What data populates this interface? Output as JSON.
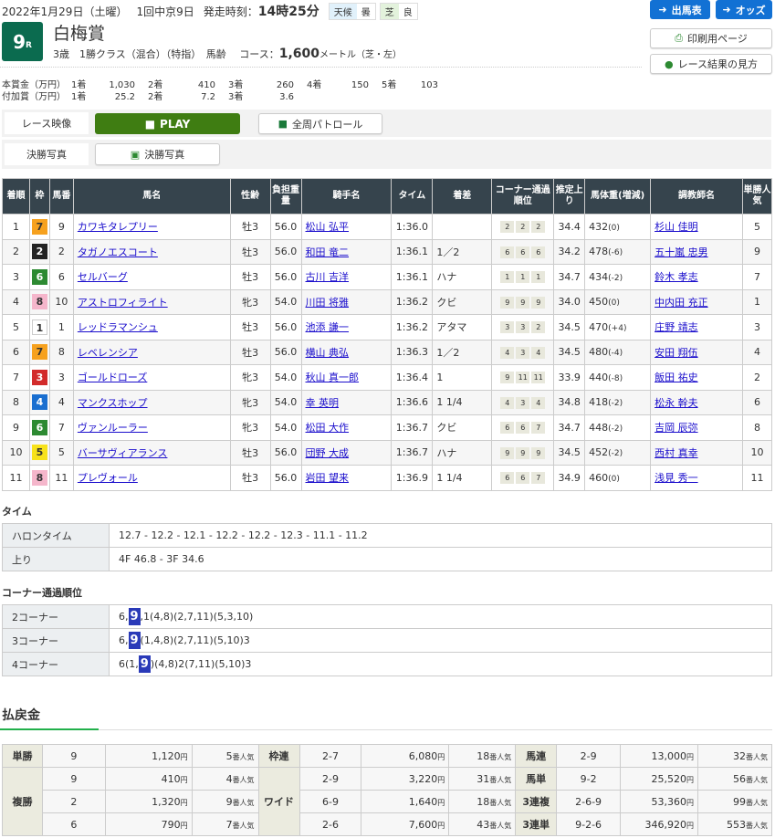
{
  "header": {
    "date": "2022年1月29日（土曜）",
    "meeting": "1回中京9日",
    "post_label": "発走時刻：",
    "post_time": "14時25分",
    "weather_label": "天候",
    "weather": "曇",
    "track_label": "芝",
    "track_cond": "良",
    "race_num": "9",
    "race_suffix": "R",
    "race_name": "白梅賞",
    "conditions": "3歳　1勝クラス（混合）（特指）　馬齢",
    "course_label": "コース：",
    "distance": "1,600",
    "unit": "メートル（芝・左）"
  },
  "prize": {
    "main_label": "本賞金（万円）",
    "main": [
      [
        "1着",
        "1,030"
      ],
      [
        "2着",
        "410"
      ],
      [
        "3着",
        "260"
      ],
      [
        "4着",
        "150"
      ],
      [
        "5着",
        "103"
      ]
    ],
    "add_label": "付加賞（万円）",
    "add": [
      [
        "1着",
        "25.2"
      ],
      [
        "2着",
        "7.2"
      ],
      [
        "3着",
        "3.6"
      ]
    ]
  },
  "buttons": {
    "entry": "出馬表",
    "odds": "オッズ",
    "print": "印刷用ページ",
    "howto": "レース結果の見方"
  },
  "media": {
    "video_label": "レース映像",
    "play": "PLAY",
    "patrol": "全周パトロール",
    "photo_label": "決勝写真",
    "photo": "決勝写真"
  },
  "colors": {
    "waku": {
      "1": "#ffffff",
      "2": "#222222",
      "3": "#d22b2b",
      "4": "#1a6fd0",
      "5": "#f7e21b",
      "6": "#2d8a32",
      "7": "#f6a11e",
      "8": "#f5b6cb"
    },
    "header_bg": "#36444d",
    "play": "#3f7d12",
    "accent": "#1271d4"
  },
  "table": {
    "headers": [
      "着順",
      "枠",
      "馬番",
      "馬名",
      "性齢",
      "負担重量",
      "騎手名",
      "タイム",
      "着差",
      "コーナー通過順位",
      "推定上り",
      "馬体重(増減)",
      "調教師名",
      "単勝人気"
    ],
    "rows": [
      [
        "1",
        "7",
        "9",
        "カワキタレプリー",
        "牡3",
        "56.0",
        "松山 弘平",
        "1:36.0",
        "",
        [
          "2",
          "2",
          "2"
        ],
        "34.4",
        "432",
        "(0)",
        "杉山 佳明",
        "5"
      ],
      [
        "2",
        "2",
        "2",
        "タガノエスコート",
        "牡3",
        "56.0",
        "和田 竜二",
        "1:36.1",
        "1／2",
        [
          "6",
          "6",
          "6"
        ],
        "34.2",
        "478",
        "(-6)",
        "五十嵐 忠男",
        "9"
      ],
      [
        "3",
        "6",
        "6",
        "セルバーグ",
        "牡3",
        "56.0",
        "古川 吉洋",
        "1:36.1",
        "ハナ",
        [
          "1",
          "1",
          "1"
        ],
        "34.7",
        "434",
        "(-2)",
        "鈴木 孝志",
        "7"
      ],
      [
        "4",
        "8",
        "10",
        "アストロフィライト",
        "牝3",
        "54.0",
        "川田 将雅",
        "1:36.2",
        "クビ",
        [
          "9",
          "9",
          "9"
        ],
        "34.0",
        "450",
        "(0)",
        "中内田 充正",
        "1"
      ],
      [
        "5",
        "1",
        "1",
        "レッドラマンシュ",
        "牡3",
        "56.0",
        "池添 謙一",
        "1:36.2",
        "アタマ",
        [
          "3",
          "3",
          "2"
        ],
        "34.5",
        "470",
        "(+4)",
        "庄野 靖志",
        "3"
      ],
      [
        "6",
        "7",
        "8",
        "レベレンシア",
        "牡3",
        "56.0",
        "横山 典弘",
        "1:36.3",
        "1／2",
        [
          "4",
          "3",
          "4"
        ],
        "34.5",
        "480",
        "(-4)",
        "安田 翔伍",
        "4"
      ],
      [
        "7",
        "3",
        "3",
        "ゴールドローズ",
        "牝3",
        "54.0",
        "秋山 真一郎",
        "1:36.4",
        "1",
        [
          "9",
          "11",
          "11"
        ],
        "33.9",
        "440",
        "(-8)",
        "飯田 祐史",
        "2"
      ],
      [
        "8",
        "4",
        "4",
        "マンクスホップ",
        "牝3",
        "54.0",
        "幸 英明",
        "1:36.6",
        "1 1/4",
        [
          "4",
          "3",
          "4"
        ],
        "34.8",
        "418",
        "(-2)",
        "松永 幹夫",
        "6"
      ],
      [
        "9",
        "6",
        "7",
        "ヴァンルーラー",
        "牝3",
        "54.0",
        "松田 大作",
        "1:36.7",
        "クビ",
        [
          "6",
          "6",
          "7"
        ],
        "34.7",
        "448",
        "(-2)",
        "吉岡 辰弥",
        "8"
      ],
      [
        "10",
        "5",
        "5",
        "バーサヴィアランス",
        "牡3",
        "56.0",
        "団野 大成",
        "1:36.7",
        "ハナ",
        [
          "9",
          "9",
          "9"
        ],
        "34.5",
        "452",
        "(-2)",
        "西村 真幸",
        "10"
      ],
      [
        "11",
        "8",
        "11",
        "プレヴォール",
        "牡3",
        "56.0",
        "岩田 望来",
        "1:36.9",
        "1 1/4",
        [
          "6",
          "6",
          "7"
        ],
        "34.9",
        "460",
        "(0)",
        "浅見 秀一",
        "11"
      ]
    ]
  },
  "time": {
    "title": "タイム",
    "rows": [
      {
        "label": "ハロンタイム",
        "value": "12.7 - 12.2 - 12.1 - 12.2 - 12.2 - 12.3 - 11.1 - 11.2"
      },
      {
        "label": "上り",
        "value": "4F 46.8 - 3F 34.6"
      }
    ]
  },
  "corner": {
    "title": "コーナー通過順位",
    "rows": [
      {
        "label": "2コーナー",
        "pre": "6,",
        "hl": "9",
        "post": ",1(4,8)(2,7,11)(5,3,10)"
      },
      {
        "label": "3コーナー",
        "pre": "6,",
        "hl": "9",
        "post": "(1,4,8)(2,7,11)(5,10)3"
      },
      {
        "label": "4コーナー",
        "pre": "6(1,",
        "hl": "9",
        "post": ")(4,8)2(7,11)(5,10)3"
      }
    ]
  },
  "payout": {
    "title": "払戻金",
    "yen": "円",
    "pop_suffix": "番人気",
    "col1": [
      {
        "type": "単勝",
        "items": [
          [
            "9",
            "1,120",
            "5"
          ]
        ]
      },
      {
        "type": "複勝",
        "items": [
          [
            "9",
            "410",
            "4"
          ],
          [
            "2",
            "1,320",
            "9"
          ],
          [
            "6",
            "790",
            "7"
          ]
        ]
      }
    ],
    "col2": [
      {
        "type": "枠連",
        "items": [
          [
            "2-7",
            "6,080",
            "18"
          ]
        ]
      },
      {
        "type": "ワイド",
        "items": [
          [
            "2-9",
            "3,220",
            "31"
          ],
          [
            "6-9",
            "1,640",
            "18"
          ],
          [
            "2-6",
            "7,600",
            "43"
          ]
        ]
      }
    ],
    "col3": [
      {
        "type": "馬連",
        "items": [
          [
            "2-9",
            "13,000",
            "32"
          ]
        ]
      },
      {
        "type": "馬単",
        "items": [
          [
            "9-2",
            "25,520",
            "56"
          ]
        ]
      },
      {
        "type": "3連複",
        "items": [
          [
            "2-6-9",
            "53,360",
            "99"
          ]
        ]
      },
      {
        "type": "3連単",
        "items": [
          [
            "9-2-6",
            "346,920",
            "553"
          ]
        ]
      }
    ]
  }
}
